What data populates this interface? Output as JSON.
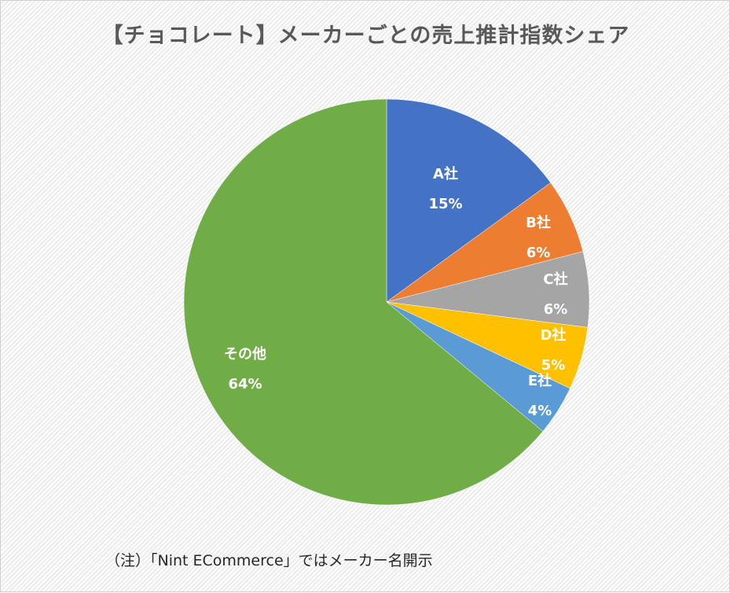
{
  "chart_data": {
    "type": "pie",
    "title": "【チョコレート】メーカーごとの売上推計指数シェア",
    "categories": [
      "A社",
      "B社",
      "C社",
      "D社",
      "E社",
      "その他"
    ],
    "values": [
      15,
      6,
      6,
      5,
      4,
      64
    ],
    "value_labels": [
      "15%",
      "6%",
      "6%",
      "5%",
      "4%",
      "64%"
    ],
    "colors": [
      "#4472C4",
      "#ED7D31",
      "#A5A5A5",
      "#FFC000",
      "#5B9BD5",
      "#70AD47"
    ],
    "start_angle": "12 o'clock, clockwise",
    "legend": "none (data labels inside slices)"
  },
  "note": "（注）「Nint ECommerce」ではメーカー名開示"
}
